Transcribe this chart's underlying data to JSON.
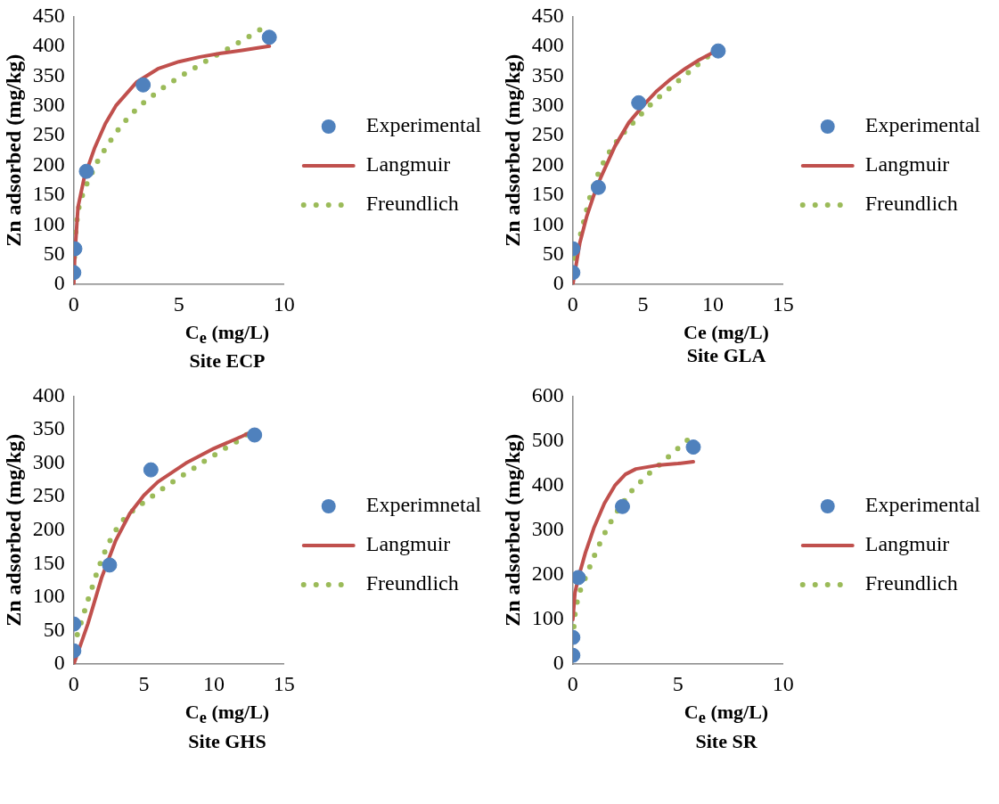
{
  "chart_data": [
    {
      "type": "scatter",
      "title": "Site ECP",
      "xlabel": "C$_{e}$ (mg/L)",
      "ylabel": "Zn adsorbed (mg/kg)",
      "xlim": [
        0,
        10
      ],
      "xticks": [
        0,
        5,
        10
      ],
      "ylim": [
        0,
        450
      ],
      "yticks": [
        0,
        50,
        100,
        150,
        200,
        250,
        300,
        350,
        400,
        450
      ],
      "grid": false,
      "legend": "right",
      "series": [
        {
          "name": "Experimental",
          "type": "scatter",
          "marker": "circle",
          "color": "#4f81bd",
          "x": [
            0,
            0.05,
            0.6,
            3.3,
            9.3
          ],
          "values": [
            20,
            60,
            190,
            335,
            415
          ]
        },
        {
          "name": "Langmuir",
          "type": "line",
          "marker": "none",
          "line_style": "solid",
          "color": "#c0504d",
          "x": [
            0,
            0.05,
            0.2,
            0.5,
            1,
            1.5,
            2,
            3,
            4,
            5,
            6,
            7,
            8,
            9.3
          ],
          "values": [
            0,
            50,
            130,
            180,
            230,
            270,
            300,
            340,
            362,
            374,
            382,
            388,
            393,
            400
          ]
        },
        {
          "name": "Freundlich",
          "type": "line",
          "marker": "none",
          "line_style": "dotted",
          "color": "#9bbb59",
          "x": [
            0.03,
            0.06,
            0.13,
            0.25,
            0.48,
            0.79,
            1.12,
            1.5,
            1.89,
            2.31,
            2.77,
            3.25,
            3.75,
            4.28,
            4.8,
            5.34,
            5.87,
            6.42,
            6.95,
            7.49,
            8.03,
            8.56,
            9.1
          ],
          "values": [
            46,
            74,
            103,
            131,
            158,
            182,
            206,
            228,
            249,
            269,
            287,
            303,
            317,
            331,
            343,
            355,
            366,
            378,
            388,
            399,
            410,
            421,
            433
          ]
        }
      ]
    },
    {
      "type": "scatter",
      "title": "Site GLA",
      "xlabel": "Ce (mg/L)",
      "ylabel": "Zn adsorbed (mg/kg)",
      "xlim": [
        0,
        15
      ],
      "xticks": [
        0,
        5,
        10,
        15
      ],
      "ylim": [
        0,
        450
      ],
      "yticks": [
        0,
        50,
        100,
        150,
        200,
        250,
        300,
        350,
        400,
        450
      ],
      "grid": false,
      "legend": "right",
      "series": [
        {
          "name": "Experimental",
          "type": "scatter",
          "marker": "circle",
          "color": "#4f81bd",
          "x": [
            0,
            0,
            1.82,
            4.7,
            10.37
          ],
          "values": [
            20,
            60,
            163,
            305,
            392
          ]
        },
        {
          "name": "Langmuir",
          "type": "line",
          "marker": "none",
          "line_style": "solid",
          "color": "#c0504d",
          "x": [
            0,
            0.5,
            1,
            1.5,
            2,
            3,
            4,
            5,
            6,
            7,
            8,
            9,
            10.2
          ],
          "values": [
            0,
            70,
            115,
            150,
            180,
            232,
            272,
            300,
            325,
            345,
            362,
            377,
            392
          ]
        },
        {
          "name": "Freundlich",
          "type": "line",
          "marker": "none",
          "line_style": "dotted",
          "color": "#9bbb59",
          "x": [
            0.14,
            0.4,
            0.68,
            0.95,
            1.24,
            1.58,
            1.99,
            2.49,
            3.06,
            3.68,
            4.32,
            4.97,
            5.64,
            6.32,
            7.02,
            7.74,
            8.42,
            9.12,
            9.83
          ],
          "values": [
            44,
            70,
            96,
            122,
            148,
            173,
            196,
            218,
            238,
            256,
            272,
            288,
            304,
            318,
            332,
            346,
            359,
            373,
            386
          ]
        }
      ]
    },
    {
      "type": "scatter",
      "title": "Site GHS",
      "xlabel": "C$_{e}$ (mg/L)",
      "ylabel": "Zn adsorbed (mg/kg)",
      "xlim": [
        0,
        15
      ],
      "xticks": [
        0,
        5,
        10,
        15
      ],
      "ylim": [
        0,
        400
      ],
      "yticks": [
        0,
        50,
        100,
        150,
        200,
        250,
        300,
        350,
        400
      ],
      "grid": false,
      "legend": "right",
      "series": [
        {
          "name": "Experimnetal",
          "type": "scatter",
          "marker": "circle",
          "color": "#4f81bd",
          "x": [
            0,
            0,
            2.55,
            5.5,
            12.9
          ],
          "values": [
            20,
            60,
            148,
            290,
            342
          ]
        },
        {
          "name": "Langmuir",
          "type": "line",
          "marker": "none",
          "line_style": "solid",
          "color": "#c0504d",
          "x": [
            0,
            1,
            2,
            3,
            4,
            5,
            6,
            8,
            10,
            12,
            13
          ],
          "values": [
            0,
            60,
            130,
            185,
            225,
            252,
            272,
            300,
            322,
            340,
            350
          ]
        },
        {
          "name": "Freundlich",
          "type": "line",
          "marker": "none",
          "line_style": "dotted",
          "color": "#9bbb59",
          "x": [
            0.25,
            0.61,
            0.95,
            1.3,
            1.67,
            2.07,
            2.52,
            3.03,
            3.59,
            4.22,
            4.9,
            5.57,
            6.22,
            6.9,
            7.57,
            8.24,
            8.92,
            9.59,
            10.28,
            10.95,
            11.63,
            12.3,
            13
          ],
          "values": [
            44,
            68,
            92,
            114,
            138,
            161,
            182,
            201,
            217,
            229,
            240,
            250,
            260,
            270,
            279,
            288,
            297,
            307,
            315,
            324,
            332,
            342,
            350
          ]
        }
      ]
    },
    {
      "type": "scatter",
      "title": "Site SR",
      "xlabel": "C$_{e}$ (mg/L)",
      "ylabel": "Zn adsorbed (mg/kg)",
      "xlim": [
        0,
        10
      ],
      "xticks": [
        0,
        5,
        10
      ],
      "ylim": [
        0,
        600
      ],
      "yticks": [
        0,
        100,
        200,
        300,
        400,
        500,
        600
      ],
      "grid": false,
      "legend": "right",
      "series": [
        {
          "name": "Experimental",
          "type": "scatter",
          "marker": "circle",
          "color": "#4f81bd",
          "x": [
            0,
            0,
            0.26,
            2.36,
            5.73
          ],
          "values": [
            20,
            60,
            194,
            353,
            486
          ]
        },
        {
          "name": "Langmuir",
          "type": "line",
          "marker": "none",
          "line_style": "solid",
          "color": "#c0504d",
          "x": [
            0,
            0.1,
            0.3,
            0.6,
            1,
            1.5,
            2,
            2.5,
            3,
            4,
            5,
            5.73
          ],
          "values": [
            100,
            160,
            200,
            250,
            305,
            360,
            400,
            425,
            437,
            445,
            449,
            453
          ]
        },
        {
          "name": "Freundlich",
          "type": "line",
          "marker": "none",
          "line_style": "dotted",
          "color": "#9bbb59",
          "x": [
            0.05,
            0.13,
            0.36,
            0.66,
            0.96,
            1.28,
            1.61,
            1.98,
            2.37,
            2.78,
            3.22,
            3.68,
            4.14,
            4.61,
            5.07,
            5.54
          ],
          "values": [
            84,
            127,
            166,
            201,
            236,
            270,
            302,
            333,
            360,
            387,
            408,
            429,
            447,
            467,
            486,
            505
          ]
        }
      ]
    }
  ]
}
